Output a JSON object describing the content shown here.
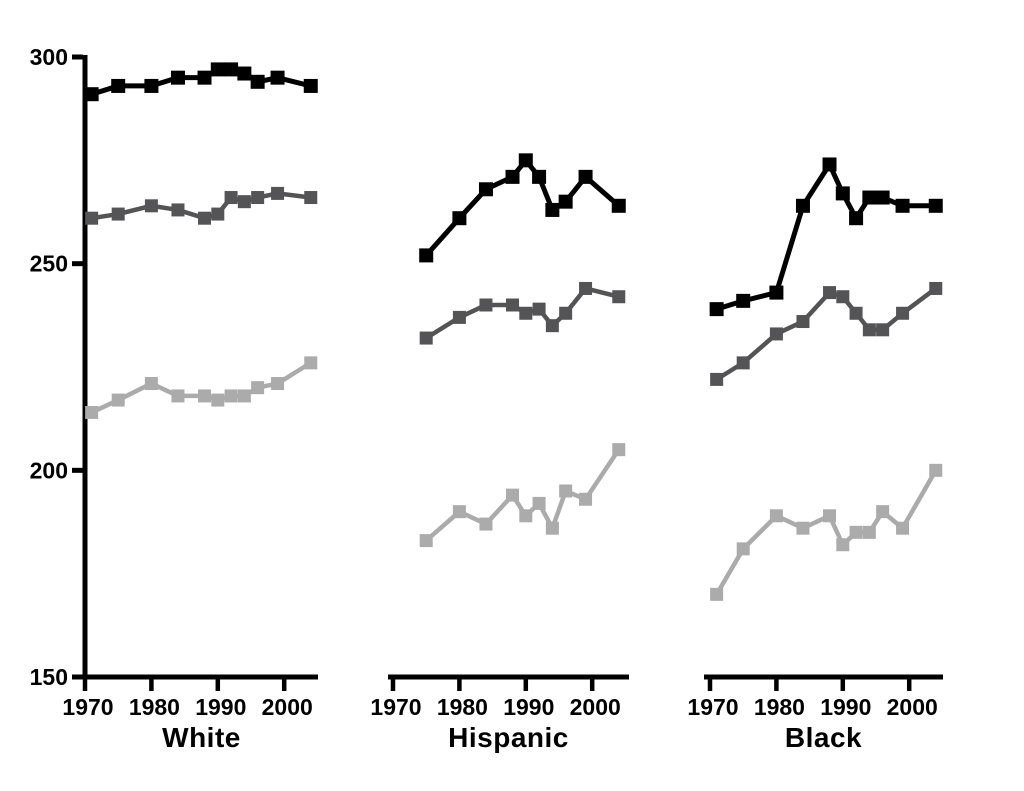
{
  "figure": {
    "background": "#ffffff"
  },
  "chart_data": {
    "type": "line",
    "title": "",
    "grid": false,
    "legend": false,
    "y_axis": {
      "tick_values": [
        150,
        200,
        250,
        300
      ],
      "tick_labels": [
        "150",
        "200",
        "250",
        "300"
      ],
      "range": [
        150,
        300
      ]
    },
    "x_axis": {
      "tick_values": [
        1970,
        1980,
        1990,
        2000
      ],
      "tick_labels": [
        "1970",
        "1980",
        "1990",
        "2000"
      ],
      "range": [
        1970,
        2005
      ]
    },
    "panels": [
      {
        "label": "White",
        "series": [
          {
            "name": "black",
            "color": "#000000",
            "x": [
              1971,
              1975,
              1980,
              1984,
              1988,
              1990,
              1992,
              1994,
              1996,
              1999,
              2004
            ],
            "y": [
              291,
              293,
              293,
              295,
              295,
              297,
              297,
              296,
              294,
              295,
              293
            ]
          },
          {
            "name": "dark-gray",
            "color": "#545456",
            "x": [
              1971,
              1975,
              1980,
              1984,
              1988,
              1990,
              1992,
              1994,
              1996,
              1999,
              2004
            ],
            "y": [
              261,
              262,
              264,
              263,
              261,
              262,
              266,
              265,
              266,
              267,
              266
            ]
          },
          {
            "name": "light-gray",
            "color": "#ababab",
            "x": [
              1971,
              1975,
              1980,
              1984,
              1988,
              1990,
              1992,
              1994,
              1996,
              1999,
              2004
            ],
            "y": [
              214,
              217,
              221,
              218,
              218,
              217,
              218,
              218,
              220,
              221,
              226
            ]
          }
        ]
      },
      {
        "label": "Hispanic",
        "series": [
          {
            "name": "black",
            "color": "#000000",
            "x": [
              1975,
              1980,
              1984,
              1988,
              1990,
              1992,
              1994,
              1996,
              1999,
              2004
            ],
            "y": [
              252,
              261,
              268,
              271,
              275,
              271,
              263,
              265,
              271,
              264
            ]
          },
          {
            "name": "dark-gray",
            "color": "#545456",
            "x": [
              1975,
              1980,
              1984,
              1988,
              1990,
              1992,
              1994,
              1996,
              1999,
              2004
            ],
            "y": [
              232,
              237,
              240,
              240,
              238,
              239,
              235,
              238,
              244,
              242
            ]
          },
          {
            "name": "light-gray",
            "color": "#ababab",
            "x": [
              1975,
              1980,
              1984,
              1988,
              1990,
              1992,
              1994,
              1996,
              1999,
              2004
            ],
            "y": [
              183,
              190,
              187,
              194,
              189,
              192,
              186,
              195,
              193,
              205
            ]
          }
        ]
      },
      {
        "label": "Black",
        "series": [
          {
            "name": "black",
            "color": "#000000",
            "x": [
              1971,
              1975,
              1980,
              1984,
              1988,
              1990,
              1992,
              1994,
              1996,
              1999,
              2004
            ],
            "y": [
              239,
              241,
              243,
              264,
              274,
              267,
              261,
              266,
              266,
              264,
              264
            ]
          },
          {
            "name": "dark-gray",
            "color": "#545456",
            "x": [
              1971,
              1975,
              1980,
              1984,
              1988,
              1990,
              1992,
              1994,
              1996,
              1999,
              2004
            ],
            "y": [
              222,
              226,
              233,
              236,
              243,
              242,
              238,
              234,
              234,
              238,
              244
            ]
          },
          {
            "name": "light-gray",
            "color": "#ababab",
            "x": [
              1971,
              1975,
              1980,
              1984,
              1988,
              1990,
              1992,
              1994,
              1996,
              1999,
              2004
            ],
            "y": [
              170,
              181,
              189,
              186,
              189,
              182,
              185,
              185,
              190,
              186,
              200
            ]
          }
        ]
      }
    ]
  }
}
